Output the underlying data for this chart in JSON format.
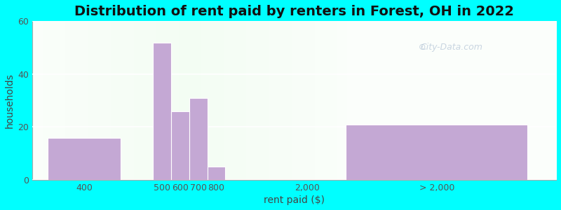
{
  "title": "Distribution of rent paid by renters in Forest, OH in 2022",
  "xlabel": "rent paid ($)",
  "ylabel": "households",
  "background_color": "#00FFFF",
  "bar_color": "#c4a8d4",
  "ylim": [
    0,
    60
  ],
  "yticks": [
    0,
    20,
    40,
    60
  ],
  "bar_positions": [
    0.7,
    2.2,
    2.55,
    2.9,
    3.25,
    7.5
  ],
  "bar_widths": [
    1.4,
    0.35,
    0.35,
    0.35,
    0.35,
    3.5
  ],
  "values": [
    16,
    52,
    26,
    31,
    5,
    21
  ],
  "tick_positions": [
    0.7,
    2.2,
    2.55,
    2.9,
    3.25,
    5.0,
    7.5
  ],
  "tick_labels": [
    "400",
    "500",
    "600",
    "700",
    "800",
    "2,000",
    "> 2,000"
  ],
  "xlim": [
    -0.3,
    9.8
  ],
  "title_fontsize": 14,
  "axis_label_fontsize": 10,
  "tick_fontsize": 9,
  "watermark": "City-Data.com"
}
